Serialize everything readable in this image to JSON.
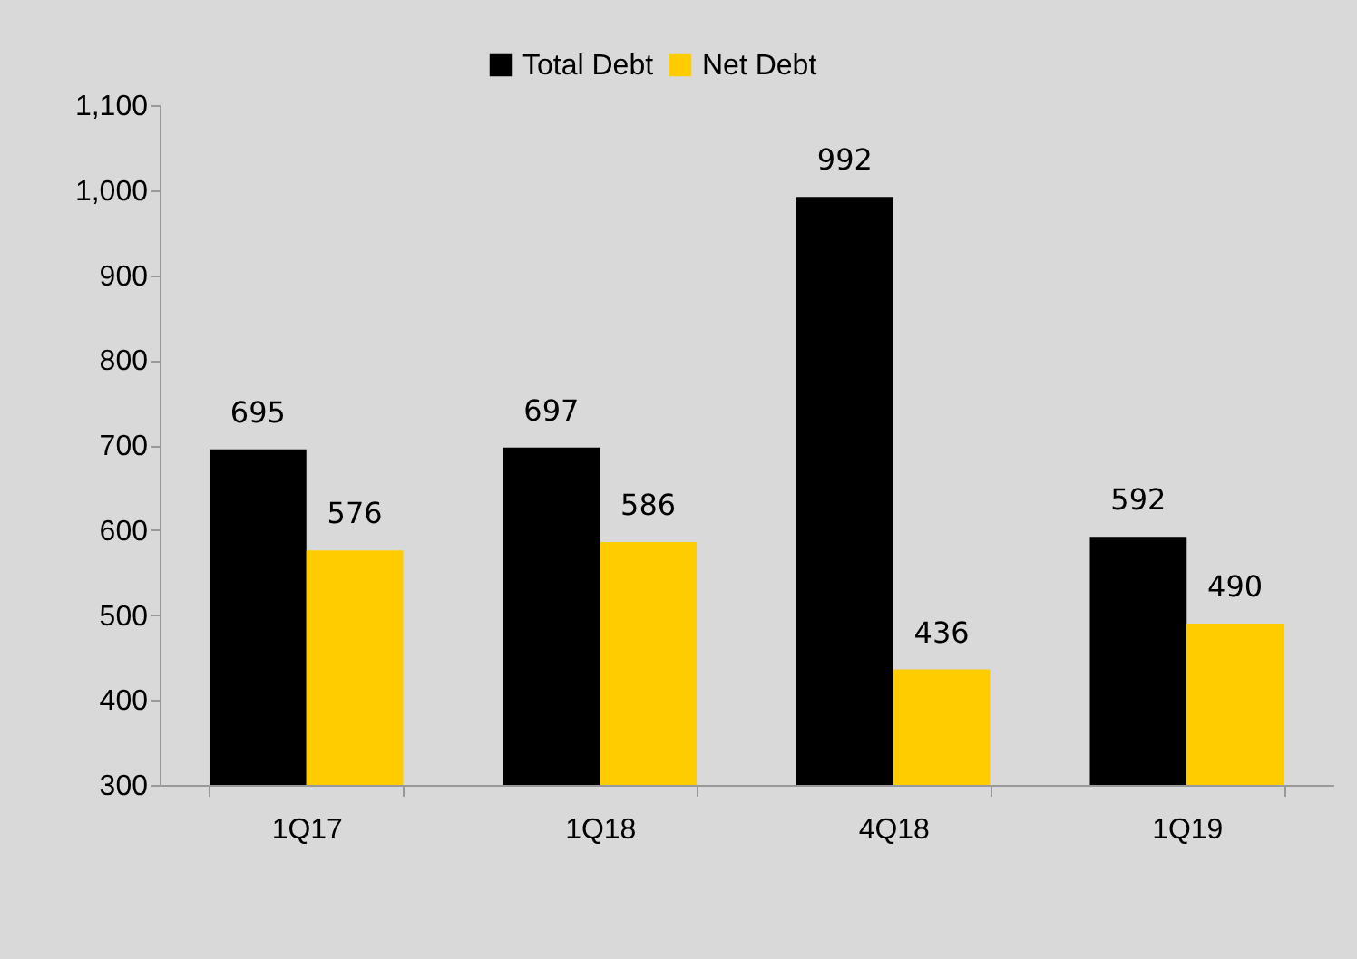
{
  "chart_data": {
    "type": "bar",
    "categories": [
      "1Q17",
      "1Q18",
      "4Q18",
      "1Q19"
    ],
    "series": [
      {
        "name": "Total Debt",
        "color": "#000000",
        "values": [
          695,
          697,
          992,
          592
        ]
      },
      {
        "name": "Net Debt",
        "color": "#ffcc00",
        "values": [
          576,
          586,
          436,
          490
        ]
      }
    ],
    "ylim": [
      300,
      1100
    ],
    "yticks": [
      300,
      400,
      500,
      600,
      700,
      800,
      900,
      {
        "value": 1000,
        "label": "1,000"
      },
      {
        "value": 1100,
        "label": "1,100"
      }
    ],
    "data_labels": true,
    "legend": "top"
  }
}
